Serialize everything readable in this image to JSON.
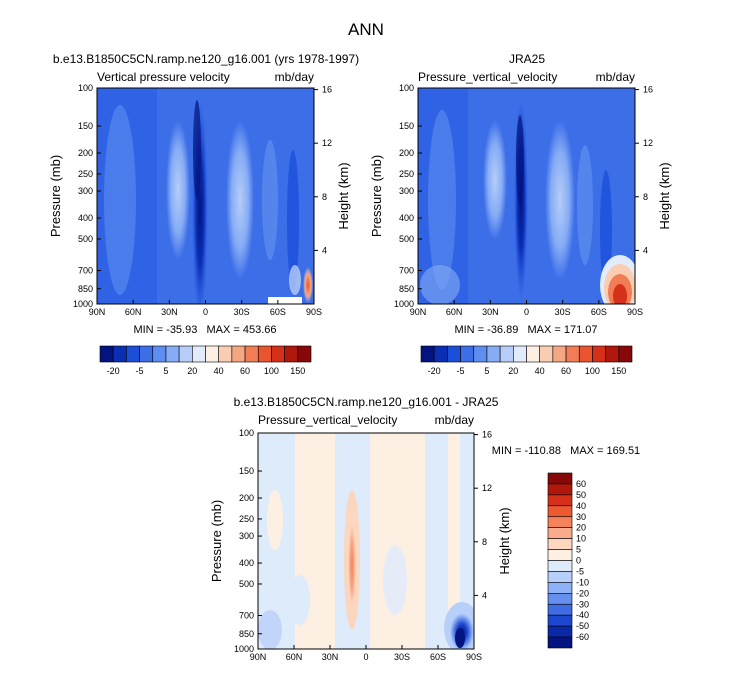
{
  "page": {
    "main_title": "ANN"
  },
  "chart_data": [
    {
      "type": "heatmap",
      "title": "b.e13.B1850C5CN.ramp.ne120_g16.001 (yrs 1978-1997)",
      "left_label": "Vertical pressure velocity",
      "right_label": "mb/day",
      "xlabel": "",
      "ylabel": "Pressure (mb)",
      "ylabel_right": "Height (km)",
      "x_ticks": [
        "90N",
        "60N",
        "30N",
        "0",
        "30S",
        "60S",
        "90S"
      ],
      "y_ticks": [
        "100",
        "150",
        "200",
        "250",
        "300",
        "400",
        "500",
        "700",
        "850",
        "1000"
      ],
      "y_right_ticks": [
        "16",
        "12",
        "8",
        "4"
      ],
      "stats": "MIN = -35.93   MAX = 453.66",
      "colorbar_labels": [
        "-20",
        "-5",
        "5",
        "20",
        "40",
        "60",
        "100",
        "150"
      ],
      "colorbar_colors": [
        "#03137f",
        "#0a2fb4",
        "#1c4fd9",
        "#3c6ee8",
        "#5e8ef0",
        "#86acf5",
        "#b6cdf8",
        "#e1ebfb",
        "#fdf0e3",
        "#f9cdb2",
        "#f5a783",
        "#f17d56",
        "#e8552f",
        "#d5311a",
        "#b1180d",
        "#870808"
      ]
    },
    {
      "type": "heatmap",
      "title": "JRA25",
      "left_label": "Pressure_vertical_velocity",
      "right_label": "mb/day",
      "xlabel": "",
      "ylabel": "Pressure (mb)",
      "ylabel_right": "Height (km)",
      "x_ticks": [
        "90N",
        "60N",
        "30N",
        "0",
        "30S",
        "60S",
        "90S"
      ],
      "y_ticks": [
        "100",
        "150",
        "200",
        "250",
        "300",
        "400",
        "500",
        "700",
        "850",
        "1000"
      ],
      "y_right_ticks": [
        "16",
        "12",
        "8",
        "4"
      ],
      "stats": "MIN = -36.89   MAX = 171.07",
      "colorbar_labels": [
        "-20",
        "-5",
        "5",
        "20",
        "40",
        "60",
        "100",
        "150"
      ],
      "colorbar_colors": [
        "#03137f",
        "#0a2fb4",
        "#1c4fd9",
        "#3c6ee8",
        "#5e8ef0",
        "#86acf5",
        "#b6cdf8",
        "#e1ebfb",
        "#fdf0e3",
        "#f9cdb2",
        "#f5a783",
        "#f17d56",
        "#e8552f",
        "#d5311a",
        "#b1180d",
        "#870808"
      ]
    },
    {
      "type": "heatmap",
      "title": "b.e13.B1850C5CN.ramp.ne120_g16.001 - JRA25",
      "left_label": "Pressure_vertical_velocity",
      "right_label": "mb/day",
      "xlabel": "",
      "ylabel": "Pressure (mb)",
      "ylabel_right": "Height (km)",
      "x_ticks": [
        "90N",
        "60N",
        "30N",
        "0",
        "30S",
        "60S",
        "90S"
      ],
      "y_ticks": [
        "100",
        "150",
        "200",
        "250",
        "300",
        "400",
        "500",
        "700",
        "850",
        "1000"
      ],
      "y_right_ticks": [
        "16",
        "12",
        "8",
        "4"
      ],
      "stats": "MIN = -110.88   MAX = 169.51",
      "colorbar_labels": [
        "60",
        "50",
        "40",
        "30",
        "20",
        "10",
        "5",
        "0",
        "-5",
        "-10",
        "-20",
        "-30",
        "-40",
        "-50",
        "-60"
      ],
      "colorbar_colors": [
        "#870808",
        "#b1180d",
        "#d5311a",
        "#ec5a31",
        "#f5825b",
        "#f9ad8c",
        "#fcd6be",
        "#fdf0e3",
        "#deebfb",
        "#b8d0f9",
        "#8fb1f5",
        "#6690ee",
        "#3f6be3",
        "#1d47cf",
        "#0b28a8",
        "#03137f"
      ]
    }
  ]
}
